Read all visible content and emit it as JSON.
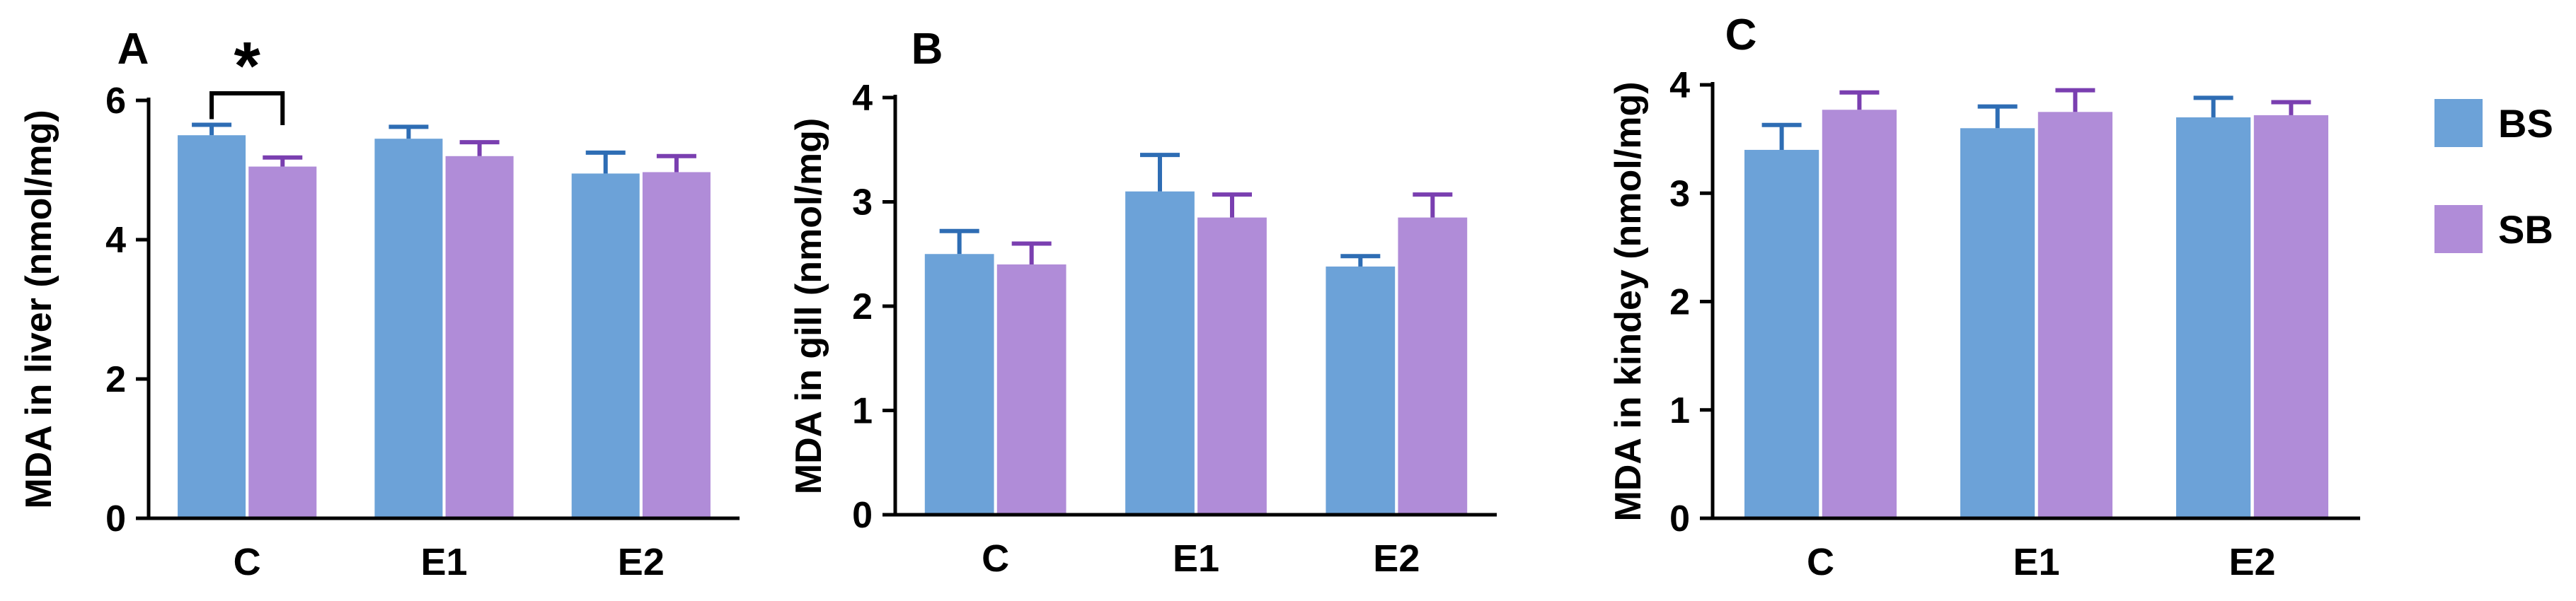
{
  "legend": {
    "items": [
      {
        "name": "BS",
        "color": "#6CA2D8"
      },
      {
        "name": "SB",
        "color": "#B08CD8"
      }
    ]
  },
  "chart_data": [
    {
      "type": "bar",
      "panel_label": "A",
      "ylabel": "MDA in liver (nmol/mg)",
      "categories": [
        "C",
        "E1",
        "E2"
      ],
      "ylim": [
        0,
        6
      ],
      "yticks": [
        0,
        2,
        4,
        6
      ],
      "series": [
        {
          "name": "BS",
          "values": [
            5.5,
            5.45,
            4.95
          ],
          "errors": [
            0.15,
            0.17,
            0.3
          ]
        },
        {
          "name": "SB",
          "values": [
            5.05,
            5.2,
            4.97
          ],
          "errors": [
            0.13,
            0.2,
            0.23
          ]
        }
      ],
      "annotations": [
        {
          "text": "*",
          "category": "C",
          "between": [
            "BS",
            "SB"
          ]
        }
      ]
    },
    {
      "type": "bar",
      "panel_label": "B",
      "ylabel": "MDA in gill (nmol/mg)",
      "categories": [
        "C",
        "E1",
        "E2"
      ],
      "ylim": [
        0,
        4
      ],
      "yticks": [
        0,
        1,
        2,
        3,
        4
      ],
      "series": [
        {
          "name": "BS",
          "values": [
            2.5,
            3.1,
            2.38
          ],
          "errors": [
            0.22,
            0.35,
            0.1
          ]
        },
        {
          "name": "SB",
          "values": [
            2.4,
            2.85,
            2.85
          ],
          "errors": [
            0.2,
            0.22,
            0.22
          ]
        }
      ],
      "annotations": []
    },
    {
      "type": "bar",
      "panel_label": "C",
      "ylabel": "MDA in kindey (nmol/mg)",
      "categories": [
        "C",
        "E1",
        "E2"
      ],
      "ylim": [
        0,
        4
      ],
      "yticks": [
        0,
        1,
        2,
        3,
        4
      ],
      "series": [
        {
          "name": "BS",
          "values": [
            3.4,
            3.6,
            3.7
          ],
          "errors": [
            0.23,
            0.2,
            0.18
          ]
        },
        {
          "name": "SB",
          "values": [
            3.77,
            3.75,
            3.72
          ],
          "errors": [
            0.16,
            0.2,
            0.12
          ]
        }
      ],
      "annotations": []
    }
  ]
}
